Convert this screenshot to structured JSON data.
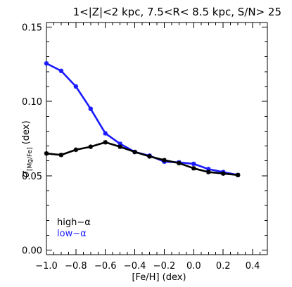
{
  "chart_data": {
    "type": "line",
    "title": "1<|Z|<2 kpc, 7.5<R< 8.5 kpc, S/N> 25",
    "xlabel": "[Fe/H] (dex)",
    "ylabel": {
      "symbol": "σ",
      "subscript": "[Mg/Fe]",
      "unit": "(dex)"
    },
    "xlim": [
      -1.0,
      0.5
    ],
    "ylim": [
      -0.003,
      0.153
    ],
    "x_ticks": [
      -1.0,
      -0.8,
      -0.6,
      -0.4,
      -0.2,
      0.0,
      0.2,
      0.4
    ],
    "x_tick_labels": [
      "−1.0",
      "−0.8",
      "−0.6",
      "−0.4",
      "−0.2",
      "0.0",
      "0.2",
      "0.4"
    ],
    "y_ticks": [
      0.0,
      0.05,
      0.1,
      0.15
    ],
    "y_tick_labels": [
      "0.00",
      "0.05",
      "0.10",
      "0.15"
    ],
    "x_minor_step": 0.05,
    "y_minor_step": 0.01,
    "legend_position": "bottom-left",
    "series": [
      {
        "name": "high−α",
        "color": "#000000",
        "marker": "asterisk",
        "x": [
          -1.0,
          -0.9,
          -0.8,
          -0.7,
          -0.6,
          -0.5,
          -0.4,
          -0.3,
          -0.2,
          -0.1,
          0.0,
          0.1,
          0.2,
          0.3
        ],
        "y": [
          0.065,
          0.064,
          0.0675,
          0.0695,
          0.0725,
          0.0695,
          0.066,
          0.063,
          0.0605,
          0.0585,
          0.055,
          0.0525,
          0.0515,
          0.0505
        ]
      },
      {
        "name": "low−α",
        "color": "#1a1aff",
        "marker": "asterisk",
        "x": [
          -1.0,
          -0.9,
          -0.8,
          -0.7,
          -0.6,
          -0.5,
          -0.4,
          -0.3,
          -0.2,
          -0.1,
          0.0,
          0.1,
          0.2,
          0.3
        ],
        "y": [
          0.1255,
          0.1205,
          0.11,
          0.095,
          0.0785,
          0.0715,
          0.066,
          0.0635,
          0.0595,
          0.059,
          0.058,
          0.0545,
          0.0525,
          0.0505
        ]
      }
    ]
  }
}
